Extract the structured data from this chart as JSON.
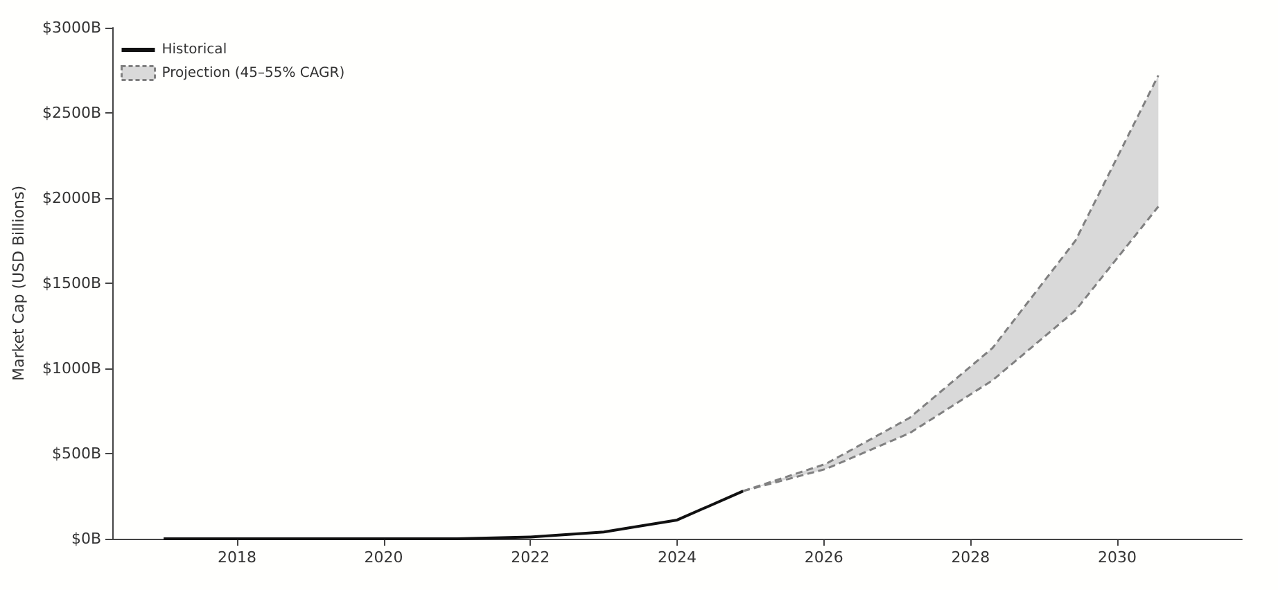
{
  "chart_data": {
    "type": "line",
    "ylabel": "Market Cap (USD Billions)",
    "xlim": [
      2016.3,
      2031.7
    ],
    "xticks": [
      2018,
      2020,
      2022,
      2024,
      2026,
      2028,
      2030
    ],
    "ylim": [
      0,
      3000
    ],
    "yticks": [
      {
        "value": 0,
        "label": "$0B"
      },
      {
        "value": 500,
        "label": "$500B"
      },
      {
        "value": 1000,
        "label": "$1000B"
      },
      {
        "value": 1500,
        "label": "$1500B"
      },
      {
        "value": 2000,
        "label": "$2000B"
      },
      {
        "value": 2500,
        "label": "$2500B"
      },
      {
        "value": 3000,
        "label": "$3000B"
      }
    ],
    "grid": false,
    "legend": "top left",
    "marker": "none",
    "series": [
      {
        "name": "Historical",
        "color": "#111111",
        "line_style": "solid",
        "x": [
          2017,
          2018,
          2019,
          2020,
          2021,
          2022,
          2023,
          2024,
          2024.9
        ],
        "values": [
          0,
          0,
          0,
          0,
          0,
          10,
          40,
          110,
          280
        ]
      },
      {
        "name": "Projection (45–55% CAGR)",
        "color": "#808080",
        "line_style": "dashed",
        "x": [
          2024.9,
          2026.03,
          2027.17,
          2028.3,
          2029.43,
          2030.56
        ],
        "values": [
          280,
          440,
          710,
          1120,
          1750,
          2720
        ],
        "lower": [
          280,
          410,
          620,
          930,
          1340,
          1950
        ],
        "upper": [
          280,
          440,
          710,
          1120,
          1750,
          2720
        ]
      },
      {
        "color": "#808080",
        "line_style": "dashed",
        "x": [
          2024.9,
          2026.03,
          2027.17,
          2028.3,
          2029.43,
          2030.56
        ],
        "values": [
          280,
          410,
          620,
          930,
          1340,
          1950
        ]
      }
    ]
  }
}
